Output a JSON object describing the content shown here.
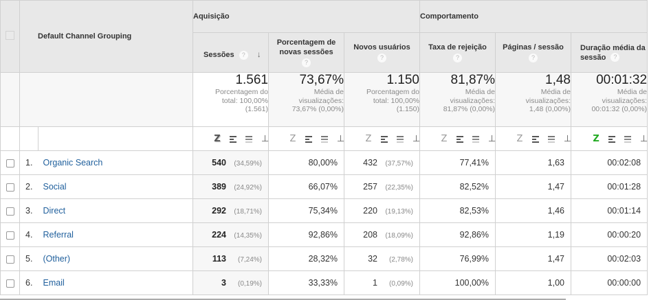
{
  "header": {
    "dimension_label": "Default Channel Grouping",
    "groups": [
      {
        "label": "Aquisição"
      },
      {
        "label": "Comportamento"
      }
    ],
    "columns": [
      {
        "label": "Sessões",
        "help": "?",
        "sort": "↓"
      },
      {
        "label": "Porcentagem de novas sessões",
        "help": "?"
      },
      {
        "label": "Novos usuários",
        "help": "?"
      },
      {
        "label": "Taxa de rejeição",
        "help": "?"
      },
      {
        "label": "Páginas / sessão",
        "help": "?"
      },
      {
        "label": "Duração média da sessão",
        "help": "?"
      }
    ]
  },
  "totals": [
    {
      "value": "1.561",
      "line1": "Porcentagem do",
      "line2": "total: 100,00%",
      "line3": "(1.561)"
    },
    {
      "value": "73,67%",
      "line1": "Média de",
      "line2": "visualizações:",
      "line3": "73,67% (0,00%)"
    },
    {
      "value": "1.150",
      "line1": "Porcentagem do",
      "line2": "total: 100,00%",
      "line3": "(1.150)"
    },
    {
      "value": "81,87%",
      "line1": "Média de",
      "line2": "visualizações:",
      "line3": "81,87% (0,00%)"
    },
    {
      "value": "1,48",
      "line1": "Média de",
      "line2": "visualizações:",
      "line3": "1,48 (0,00%)"
    },
    {
      "value": "00:01:32",
      "line1": "Média de",
      "line2": "visualizações:",
      "line3": "00:01:32 (0,00%)"
    }
  ],
  "viz_icons": {
    "z": "Z",
    "pivot": "⊥",
    "names": [
      "bar-chart-toggle",
      "comparison-toggle",
      "percentage-toggle",
      "pivot-toggle"
    ]
  },
  "rows": [
    {
      "index": "1.",
      "channel": "Organic Search",
      "sessions": "540",
      "sessions_pct": "(34,59%)",
      "new_sessions_pct": "80,00%",
      "new_users": "432",
      "new_users_pct": "(37,57%)",
      "bounce_rate": "77,41%",
      "pages_per_session": "1,63",
      "avg_duration": "00:02:08"
    },
    {
      "index": "2.",
      "channel": "Social",
      "sessions": "389",
      "sessions_pct": "(24,92%)",
      "new_sessions_pct": "66,07%",
      "new_users": "257",
      "new_users_pct": "(22,35%)",
      "bounce_rate": "82,52%",
      "pages_per_session": "1,47",
      "avg_duration": "00:01:28"
    },
    {
      "index": "3.",
      "channel": "Direct",
      "sessions": "292",
      "sessions_pct": "(18,71%)",
      "new_sessions_pct": "75,34%",
      "new_users": "220",
      "new_users_pct": "(19,13%)",
      "bounce_rate": "82,53%",
      "pages_per_session": "1,46",
      "avg_duration": "00:01:14"
    },
    {
      "index": "4.",
      "channel": "Referral",
      "sessions": "224",
      "sessions_pct": "(14,35%)",
      "new_sessions_pct": "92,86%",
      "new_users": "208",
      "new_users_pct": "(18,09%)",
      "bounce_rate": "92,86%",
      "pages_per_session": "1,19",
      "avg_duration": "00:00:20"
    },
    {
      "index": "5.",
      "channel": "(Other)",
      "sessions": "113",
      "sessions_pct": "(7,24%)",
      "new_sessions_pct": "28,32%",
      "new_users": "32",
      "new_users_pct": "(2,78%)",
      "bounce_rate": "76,99%",
      "pages_per_session": "1,47",
      "avg_duration": "00:02:03"
    },
    {
      "index": "6.",
      "channel": "Email",
      "sessions": "3",
      "sessions_pct": "(0,19%)",
      "new_sessions_pct": "33,33%",
      "new_users": "1",
      "new_users_pct": "(0,09%)",
      "bounce_rate": "100,00%",
      "pages_per_session": "1,00",
      "avg_duration": "00:00:00"
    }
  ],
  "colors": {
    "link": "#1f5f9c",
    "header_bg": "#e8e8e8",
    "totals_bg": "#f7f7f7",
    "active_viz_green": "#22aa22",
    "border": "#d0d0d0"
  }
}
